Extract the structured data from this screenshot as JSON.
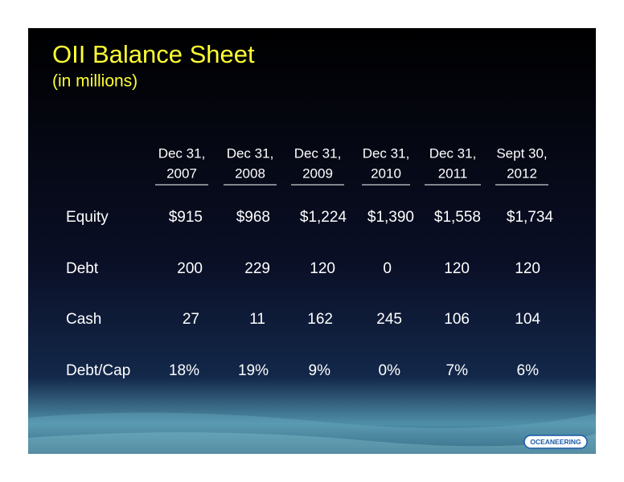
{
  "header": {
    "title": "OII Balance Sheet",
    "subtitle": "(in millions)"
  },
  "table": {
    "columns": [
      {
        "line1": "Dec 31,",
        "line2": "2007"
      },
      {
        "line1": "Dec 31,",
        "line2": "2008"
      },
      {
        "line1": "Dec 31,",
        "line2": "2009"
      },
      {
        "line1": "Dec 31,",
        "line2": "2010"
      },
      {
        "line1": "Dec 31,",
        "line2": "2011"
      },
      {
        "line1": "Sept 30,",
        "line2": "2012"
      }
    ],
    "rows": [
      {
        "label": "Equity",
        "cells": [
          "$915",
          "$968",
          "$1,224",
          "$1,390",
          "$1,558",
          "$1,734"
        ]
      },
      {
        "label": "Debt",
        "cells": [
          "200",
          "229",
          "120",
          "0",
          "120",
          "120"
        ]
      },
      {
        "label": "Cash",
        "cells": [
          "27",
          "11",
          "162",
          "245",
          "106",
          "104"
        ]
      },
      {
        "label": "Debt/Cap",
        "cells": [
          "18%",
          "19%",
          "9%",
          "0%",
          "7%",
          "6%"
        ]
      }
    ]
  },
  "logo": "OCEANEERING"
}
